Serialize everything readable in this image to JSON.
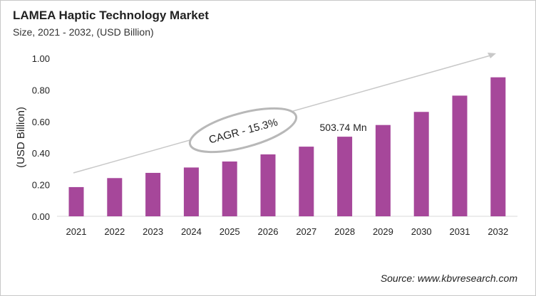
{
  "chart_data": {
    "type": "bar",
    "title": "LAMEA Haptic Technology Market",
    "subtitle": "Size, 2021 - 2032, (USD Billion)",
    "ylabel": "(USD Billion)",
    "xlabel": "",
    "categories": [
      "2021",
      "2022",
      "2023",
      "2024",
      "2025",
      "2026",
      "2027",
      "2028",
      "2029",
      "2030",
      "2031",
      "2032"
    ],
    "values": [
      0.185,
      0.242,
      0.275,
      0.309,
      0.347,
      0.392,
      0.441,
      0.504,
      0.578,
      0.661,
      0.764,
      0.88
    ],
    "ylim": [
      0,
      1.0
    ],
    "yticks": [
      "0.00",
      "0.20",
      "0.40",
      "0.60",
      "0.80",
      "1.00"
    ],
    "grid": false,
    "bar_color": "#A6479A",
    "annotations": {
      "cagr": "CAGR - 15.3%",
      "data_label": "503.74 Mn",
      "data_label_category": "2028"
    },
    "source": "Source: www.kbvresearch.com"
  }
}
